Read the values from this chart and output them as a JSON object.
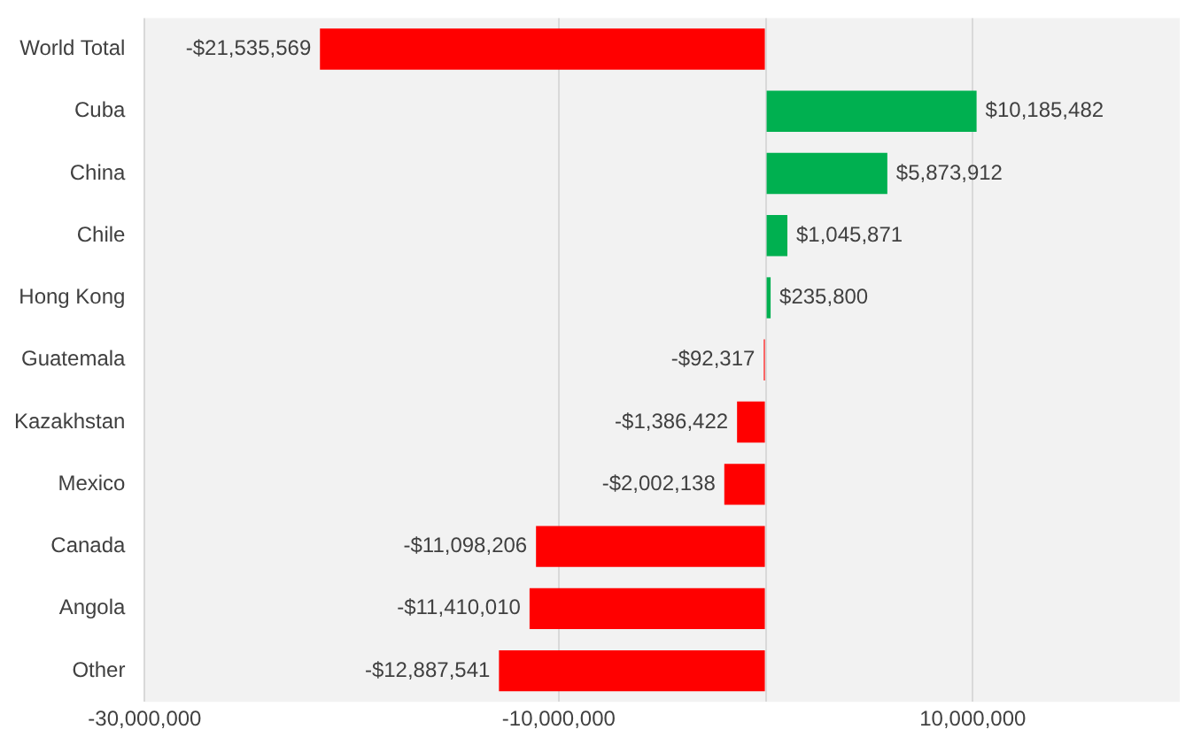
{
  "chart_data": {
    "type": "bar",
    "orientation": "horizontal",
    "categories": [
      "World Total",
      "Cuba",
      "China",
      "Chile",
      "Hong Kong",
      "Guatemala",
      "Kazakhstan",
      "Mexico",
      "Canada",
      "Angola",
      "Other"
    ],
    "values": [
      -21535569,
      10185482,
      5873912,
      1045871,
      235800,
      -92317,
      -1386422,
      -2002138,
      -11098206,
      -11410010,
      -12887541
    ],
    "colors": [
      "#ff0000",
      "#00b050",
      "#00b050",
      "#00b050",
      "#00b050",
      "#ff0000",
      "#ff0000",
      "#ff0000",
      "#ff0000",
      "#ff0000",
      "#ff0000"
    ],
    "value_labels": [
      "-$21,535,569",
      "$10,185,482",
      "$5,873,912",
      "$1,045,871",
      "$235,800",
      "-$92,317",
      "-$1,386,422",
      "-$2,002,138",
      "-$11,098,206",
      "-$11,410,010",
      "-$12,887,541"
    ],
    "xlim": [
      -30000000,
      20000000
    ],
    "xticks": [
      {
        "value": -30000000,
        "label": "-30,000,000"
      },
      {
        "value": -10000000,
        "label": "-10,000,000"
      },
      {
        "value": 0,
        "label": null
      },
      {
        "value": 10000000,
        "label": "10,000,000"
      }
    ],
    "grid": "x",
    "legend": false
  }
}
